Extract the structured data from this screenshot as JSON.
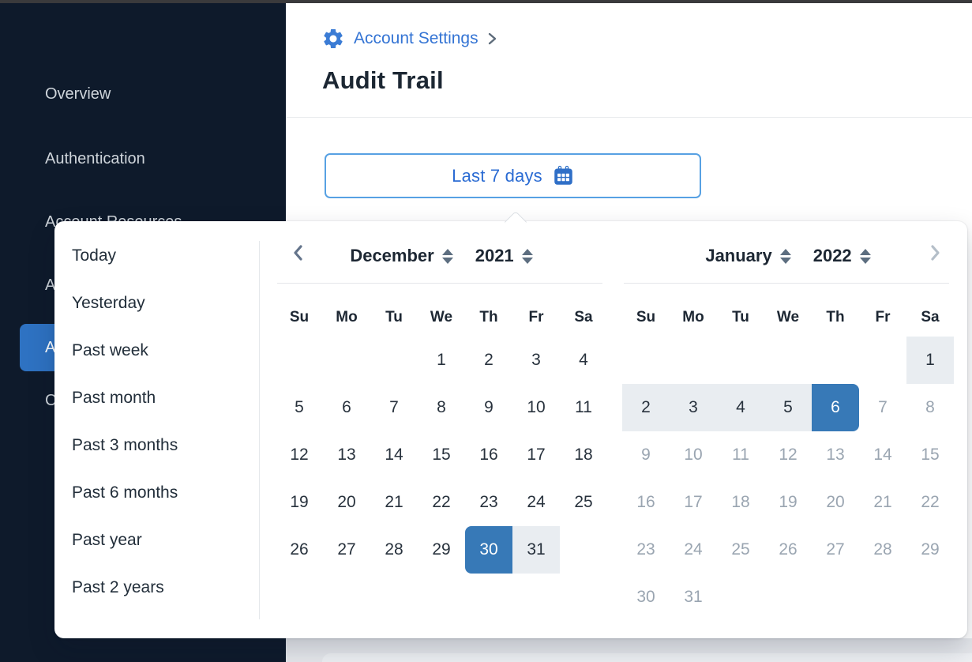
{
  "sidebar": {
    "items": [
      {
        "label": "Overview"
      },
      {
        "label": "Authentication"
      },
      {
        "label": "Account Resources"
      },
      {
        "label": "A"
      },
      {
        "label": "A",
        "selected": true
      },
      {
        "label": "C"
      }
    ]
  },
  "breadcrumb": {
    "label": "Account Settings"
  },
  "page": {
    "title": "Audit Trail"
  },
  "datepicker": {
    "button_label": "Last 7 days",
    "presets": [
      "Today",
      "Yesterday",
      "Past week",
      "Past month",
      "Past 3 months",
      "Past 6 months",
      "Past year",
      "Past 2 years"
    ],
    "weekdays": [
      "Su",
      "Mo",
      "Tu",
      "We",
      "Th",
      "Fr",
      "Sa"
    ],
    "calendars": [
      {
        "side": "left",
        "month": "December",
        "year": "2021",
        "first_weekday": 3,
        "days": 31,
        "states": {
          "30": "start",
          "31": "range"
        }
      },
      {
        "side": "right",
        "month": "January",
        "year": "2022",
        "first_weekday": 6,
        "days": 31,
        "states": {
          "1": "range",
          "2": "range",
          "3": "range",
          "4": "range",
          "5": "range",
          "6": "end"
        },
        "muted_from": 7
      }
    ],
    "selected_range": {
      "start_day": "30",
      "start_month": "December 2021",
      "end_day": "6",
      "end_month": "January 2022"
    }
  },
  "colors": {
    "sidebar_bg": "#0e1a2b",
    "sidebar_selected_bg": "#2e72c2",
    "link_blue": "#3474d4",
    "button_border": "#57a1e3",
    "button_text": "#2a6bd3",
    "selected_day_bg": "#3779b7",
    "range_bg": "#e9edf1",
    "muted_day": "#9aa5b1",
    "title_text": "#1c2733"
  }
}
